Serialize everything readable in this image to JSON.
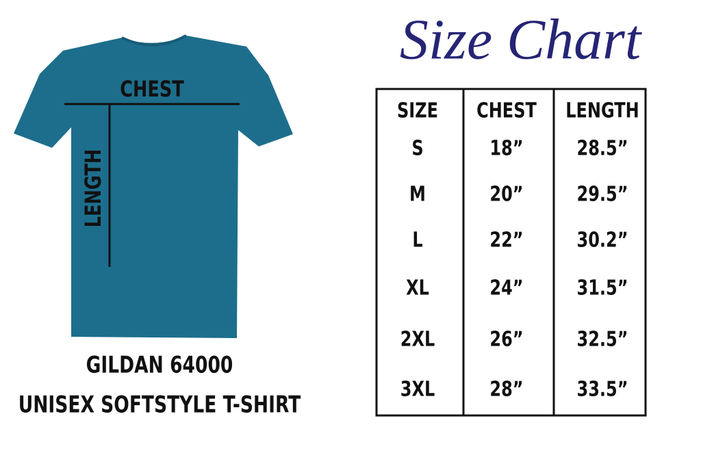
{
  "title": "Size Chart",
  "shirt": {
    "chest_label": "CHEST",
    "length_label": "LENGTH"
  },
  "caption": {
    "line1": "GILDAN 64000",
    "line2": "UNISEX SOFTSTYLE T-SHIRT"
  },
  "table": {
    "headers": [
      "SIZE",
      "CHEST",
      "LENGTH"
    ],
    "rows": [
      [
        "S",
        "18”",
        "28.5”"
      ],
      [
        "M",
        "20”",
        "29.5”"
      ],
      [
        "L",
        "22”",
        "30.2”"
      ],
      [
        "XL",
        "24”",
        "31.5”"
      ],
      [
        "2XL",
        "26”",
        "32.5”"
      ],
      [
        "3XL",
        "28”",
        "33.5”"
      ]
    ]
  }
}
